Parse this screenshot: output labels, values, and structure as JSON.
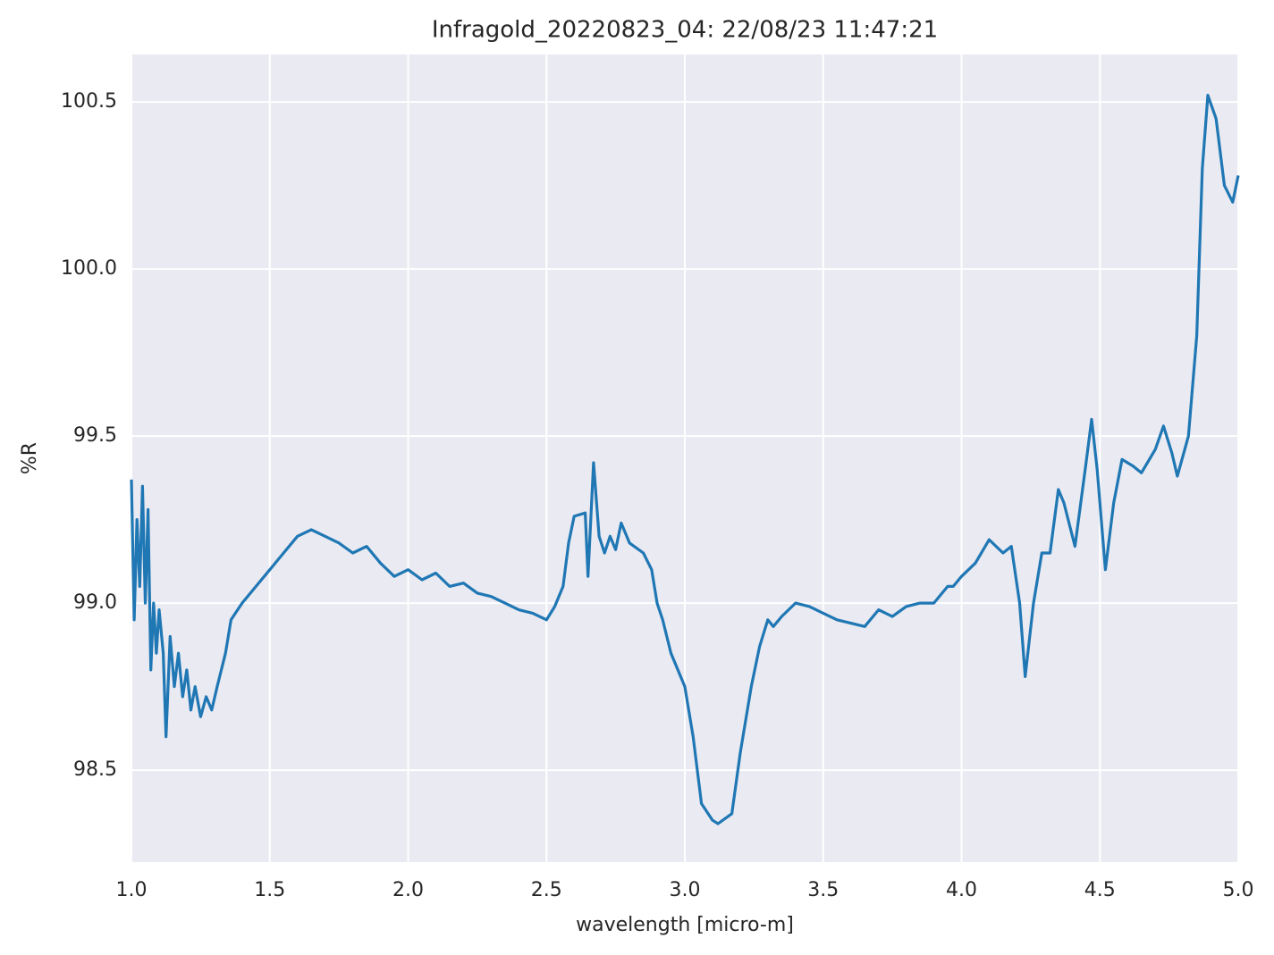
{
  "chart_data": {
    "type": "line",
    "title": "Infragold_20220823_04:  22/08/23 11:47:21",
    "x_label": "wavelength [micro-m]",
    "y_label": "%R",
    "xlim": [
      1.0,
      5.0
    ],
    "ylim": [
      98.225,
      100.642
    ],
    "xticks": [
      {
        "value": 1.0,
        "label": "1.0"
      },
      1.5,
      {
        "value": 2.0,
        "label": "2.0"
      },
      2.5,
      {
        "value": 3.0,
        "label": "3.0"
      },
      3.5,
      {
        "value": 4.0,
        "label": "4.0"
      },
      4.5,
      {
        "value": 5.0,
        "label": "5.0"
      }
    ],
    "yticks": [
      98.5,
      {
        "value": 99.0,
        "label": "99.0"
      },
      99.5,
      {
        "value": 100.0,
        "label": "100.0"
      },
      100.5
    ],
    "grid": true,
    "background": "#eaeaf2",
    "series": [
      {
        "name": "%R",
        "color": "#1f77b4",
        "x": [
          1.0,
          1.01,
          1.02,
          1.03,
          1.04,
          1.05,
          1.06,
          1.07,
          1.08,
          1.09,
          1.1,
          1.115,
          1.125,
          1.14,
          1.155,
          1.17,
          1.185,
          1.2,
          1.215,
          1.23,
          1.25,
          1.27,
          1.29,
          1.31,
          1.34,
          1.36,
          1.4,
          1.45,
          1.5,
          1.55,
          1.6,
          1.65,
          1.7,
          1.75,
          1.8,
          1.85,
          1.9,
          1.95,
          2.0,
          2.05,
          2.1,
          2.15,
          2.2,
          2.25,
          2.3,
          2.35,
          2.4,
          2.45,
          2.5,
          2.53,
          2.56,
          2.58,
          2.6,
          2.64,
          2.65,
          2.67,
          2.69,
          2.71,
          2.73,
          2.75,
          2.77,
          2.8,
          2.85,
          2.88,
          2.9,
          2.92,
          2.95,
          3.0,
          3.03,
          3.06,
          3.1,
          3.12,
          3.17,
          3.2,
          3.24,
          3.27,
          3.3,
          3.32,
          3.35,
          3.4,
          3.45,
          3.5,
          3.55,
          3.6,
          3.65,
          3.7,
          3.75,
          3.8,
          3.85,
          3.9,
          3.95,
          3.97,
          4.0,
          4.05,
          4.1,
          4.15,
          4.18,
          4.21,
          4.23,
          4.26,
          4.29,
          4.32,
          4.35,
          4.37,
          4.41,
          4.45,
          4.47,
          4.49,
          4.52,
          4.55,
          4.58,
          4.62,
          4.65,
          4.7,
          4.73,
          4.76,
          4.78,
          4.82,
          4.85,
          4.87,
          4.89,
          4.92,
          4.95,
          4.98,
          5.0
        ],
        "values": [
          99.37,
          98.95,
          99.25,
          99.05,
          99.35,
          99.0,
          99.28,
          98.8,
          99.0,
          98.85,
          98.98,
          98.85,
          98.6,
          98.9,
          98.75,
          98.85,
          98.72,
          98.8,
          98.68,
          98.75,
          98.66,
          98.72,
          98.68,
          98.75,
          98.85,
          98.95,
          99.0,
          99.05,
          99.1,
          99.15,
          99.2,
          99.22,
          99.2,
          99.18,
          99.15,
          99.17,
          99.12,
          99.08,
          99.1,
          99.07,
          99.09,
          99.05,
          99.06,
          99.03,
          99.02,
          99.0,
          98.98,
          98.97,
          98.95,
          98.99,
          99.05,
          99.18,
          99.26,
          99.27,
          99.08,
          99.42,
          99.2,
          99.15,
          99.2,
          99.16,
          99.24,
          99.18,
          99.15,
          99.1,
          99.0,
          98.95,
          98.85,
          98.75,
          98.6,
          98.4,
          98.35,
          98.34,
          98.37,
          98.55,
          98.75,
          98.87,
          98.95,
          98.93,
          98.96,
          99.0,
          98.99,
          98.97,
          98.95,
          98.94,
          98.93,
          98.98,
          98.96,
          98.99,
          99.0,
          99.0,
          99.05,
          99.05,
          99.08,
          99.12,
          99.19,
          99.15,
          99.17,
          99.0,
          98.78,
          99.0,
          99.15,
          99.15,
          99.34,
          99.3,
          99.17,
          99.42,
          99.55,
          99.4,
          99.1,
          99.3,
          99.43,
          99.41,
          99.39,
          99.46,
          99.53,
          99.45,
          99.38,
          99.5,
          99.8,
          100.3,
          100.52,
          100.45,
          100.25,
          100.2,
          100.28
        ]
      }
    ]
  }
}
